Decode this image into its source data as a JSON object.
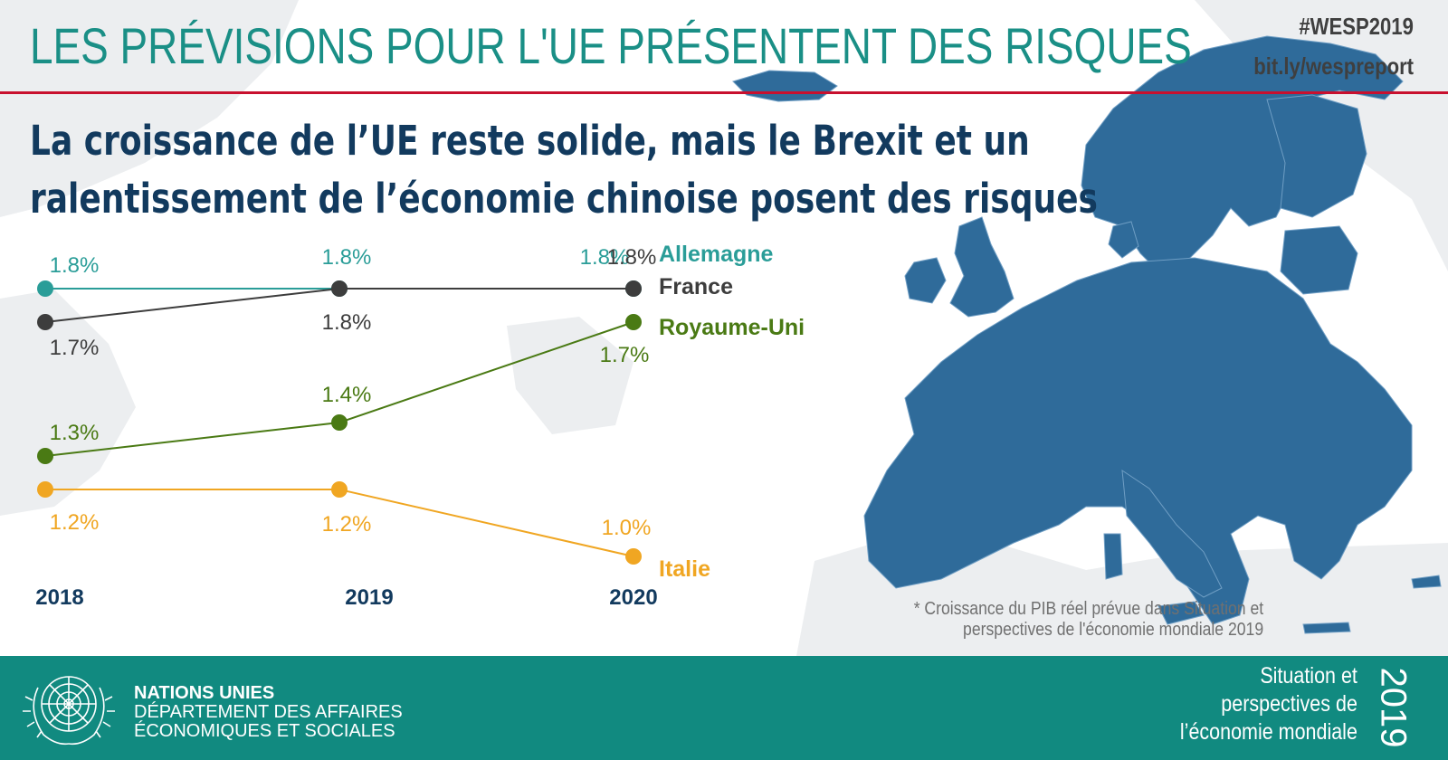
{
  "header": {
    "title": "LES PRÉVISIONS POUR L'UE PRÉSENTENT DES RISQUES",
    "hashtag": "#WESP2019",
    "link": "bit.ly/wespreport"
  },
  "subtitle": {
    "line1": "La croissance de l’UE reste solide, mais le Brexit et un",
    "line2": "ralentissement de l’économie chinoise posent des risques"
  },
  "chart_data": {
    "type": "line",
    "x": [
      "2018",
      "2019",
      "2020"
    ],
    "ylim": [
      0.9,
      1.9
    ],
    "series": [
      {
        "name": "Allemagne",
        "values": [
          1.8,
          1.8,
          1.8
        ],
        "labels": [
          "1.8%",
          "1.8%",
          "1.8%"
        ],
        "color": "#2a9d98"
      },
      {
        "name": "France",
        "values": [
          1.7,
          1.8,
          1.8
        ],
        "labels": [
          "1.7%",
          "1.8%",
          "1.8%"
        ],
        "color": "#3d3d3d"
      },
      {
        "name": "Royaume-Uni",
        "values": [
          1.3,
          1.4,
          1.7
        ],
        "labels": [
          "1.3%",
          "1.4%",
          "1.7%"
        ],
        "color": "#4a7a14"
      },
      {
        "name": "Italie",
        "values": [
          1.2,
          1.2,
          1.0
        ],
        "labels": [
          "1.2%",
          "1.2%",
          "1.0%"
        ],
        "color": "#f0a622"
      }
    ]
  },
  "footnote": {
    "line1": "* Croissance du PIB réel prévue dans Situation et",
    "line2": "perspectives de l'économie mondiale 2019"
  },
  "footer": {
    "org_name": "NATIONS UNIES",
    "dept_line1": "DÉPARTEMENT DES AFFAIRES",
    "dept_line2": "ÉCONOMIQUES ET SOCIALES",
    "report_line1": "Situation et",
    "report_line2": "perspectives de",
    "report_line3": "l’économie mondiale",
    "year": "2019",
    "background_color": "#118a80"
  },
  "colors": {
    "title": "#1a8f86",
    "subtitle": "#123a5e",
    "rule": "#c8102e",
    "map_eu": "#2f6b9a",
    "map_other": "#e6e8ea"
  }
}
